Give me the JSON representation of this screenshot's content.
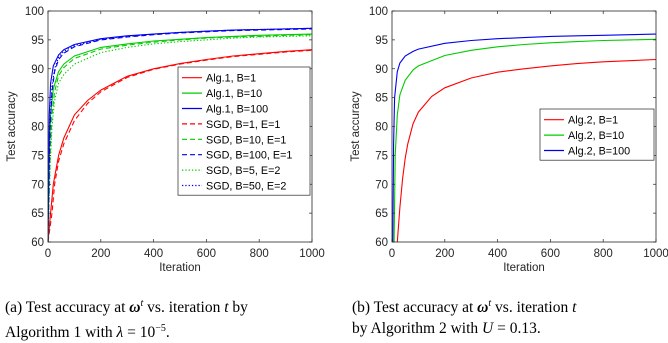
{
  "chart_data": [
    {
      "type": "line",
      "panel": "a",
      "xlabel": "Iteration",
      "ylabel": "Test accuracy",
      "xlim": [
        0,
        1000
      ],
      "ylim": [
        60,
        100
      ],
      "xticks": [
        0,
        200,
        400,
        600,
        800,
        1000
      ],
      "yticks": [
        60,
        65,
        70,
        75,
        80,
        85,
        90,
        95,
        100
      ],
      "legend_position": "right-middle",
      "grid": false,
      "series": [
        {
          "name": "Alg.1, B=1",
          "color": "#ff0000",
          "style": "solid",
          "x": [
            0,
            10,
            20,
            40,
            60,
            100,
            150,
            200,
            300,
            400,
            500,
            600,
            700,
            800,
            900,
            1000
          ],
          "y": [
            60,
            65,
            70,
            75,
            78,
            82,
            84.5,
            86.3,
            88.7,
            90,
            90.9,
            91.6,
            92.2,
            92.6,
            93,
            93.3
          ]
        },
        {
          "name": "Alg.1, B=10",
          "color": "#00cc00",
          "style": "solid",
          "x": [
            0,
            5,
            10,
            20,
            40,
            60,
            100,
            200,
            300,
            400,
            500,
            600,
            700,
            800,
            900,
            1000
          ],
          "y": [
            60,
            75,
            82,
            86.5,
            89.5,
            90.8,
            92.2,
            93.7,
            94.3,
            94.8,
            95.1,
            95.4,
            95.6,
            95.8,
            95.9,
            96
          ]
        },
        {
          "name": "Alg.1, B=100",
          "color": "#0000ee",
          "style": "solid",
          "x": [
            0,
            3,
            5,
            10,
            20,
            40,
            60,
            100,
            200,
            300,
            400,
            500,
            600,
            700,
            800,
            900,
            1000
          ],
          "y": [
            60,
            75,
            82,
            87.5,
            90.5,
            92.4,
            93.3,
            94.2,
            95.2,
            95.7,
            96,
            96.3,
            96.5,
            96.7,
            96.8,
            96.9,
            97
          ]
        },
        {
          "name": "SGD, B=1, E=1",
          "color": "#ff0000",
          "style": "dashed",
          "x": [
            0,
            15,
            25,
            40,
            60,
            100,
            150,
            200,
            300,
            400,
            500,
            600,
            700,
            800,
            900,
            1000
          ],
          "y": [
            60,
            65,
            70,
            74,
            77,
            81,
            84,
            86,
            88.5,
            89.9,
            90.8,
            91.5,
            92.1,
            92.5,
            92.9,
            93.2
          ]
        },
        {
          "name": "SGD, B=10, E=1",
          "color": "#00cc00",
          "style": "dashed",
          "x": [
            0,
            8,
            15,
            25,
            40,
            60,
            100,
            200,
            300,
            400,
            500,
            600,
            700,
            800,
            900,
            1000
          ],
          "y": [
            60,
            75,
            82,
            86,
            88.8,
            90.2,
            91.8,
            93.4,
            94.1,
            94.6,
            95,
            95.3,
            95.5,
            95.6,
            95.8,
            95.9
          ]
        },
        {
          "name": "SGD, B=100, E=1",
          "color": "#0000ee",
          "style": "dashed",
          "x": [
            0,
            4,
            8,
            15,
            25,
            40,
            60,
            100,
            200,
            300,
            400,
            500,
            600,
            700,
            800,
            900,
            1000
          ],
          "y": [
            60,
            72,
            80,
            86,
            89.5,
            91.6,
            92.7,
            93.8,
            95,
            95.5,
            95.9,
            96.2,
            96.4,
            96.6,
            96.7,
            96.8,
            96.9
          ]
        },
        {
          "name": "SGD, B=5, E=2",
          "color": "#00cc00",
          "style": "dotted",
          "x": [
            0,
            8,
            15,
            25,
            40,
            60,
            100,
            200,
            300,
            400,
            500,
            600,
            700,
            800,
            900,
            1000
          ],
          "y": [
            60,
            73,
            80,
            84.5,
            87.5,
            89,
            90.8,
            92.8,
            93.7,
            94.3,
            94.7,
            95,
            95.3,
            95.5,
            95.6,
            95.7
          ]
        },
        {
          "name": "SGD, B=50, E=2",
          "color": "#0000ee",
          "style": "dotted",
          "x": [
            0,
            4,
            8,
            15,
            25,
            40,
            60,
            100,
            200,
            300,
            400,
            500,
            600,
            700,
            800,
            900,
            1000
          ],
          "y": [
            60,
            73,
            81,
            87,
            90,
            92,
            93,
            94,
            95.1,
            95.6,
            96,
            96.3,
            96.5,
            96.7,
            96.8,
            96.9,
            97
          ]
        }
      ]
    },
    {
      "type": "line",
      "panel": "b",
      "xlabel": "Iteration",
      "ylabel": "Test accuracy",
      "xlim": [
        0,
        1000
      ],
      "ylim": [
        60,
        100
      ],
      "xticks": [
        0,
        200,
        400,
        600,
        800,
        1000
      ],
      "yticks": [
        60,
        65,
        70,
        75,
        80,
        85,
        90,
        95,
        100
      ],
      "legend_position": "right-middle",
      "grid": false,
      "series": [
        {
          "name": "Alg.2, B=1",
          "color": "#ff0000",
          "style": "solid",
          "x": [
            20,
            30,
            40,
            50,
            60,
            80,
            100,
            150,
            200,
            300,
            400,
            500,
            600,
            700,
            800,
            900,
            1000
          ],
          "y": [
            60,
            66,
            71,
            74.5,
            77,
            80.5,
            82.5,
            85.2,
            86.7,
            88.4,
            89.4,
            90,
            90.5,
            90.9,
            91.2,
            91.4,
            91.6
          ]
        },
        {
          "name": "Alg.2, B=10",
          "color": "#00cc00",
          "style": "solid",
          "x": [
            8,
            12,
            20,
            30,
            50,
            80,
            100,
            200,
            300,
            400,
            500,
            600,
            700,
            800,
            900,
            1000
          ],
          "y": [
            60,
            75,
            82,
            85.5,
            88,
            89.8,
            90.5,
            92.3,
            93.2,
            93.8,
            94.2,
            94.5,
            94.7,
            94.9,
            95,
            95.1
          ]
        },
        {
          "name": "Alg.2, B=100",
          "color": "#0000ee",
          "style": "solid",
          "x": [
            3,
            6,
            10,
            20,
            30,
            50,
            80,
            100,
            200,
            300,
            400,
            500,
            600,
            700,
            800,
            900,
            1000
          ],
          "y": [
            60,
            77,
            85,
            89.5,
            91,
            92.2,
            93,
            93.4,
            94.4,
            94.9,
            95.2,
            95.4,
            95.6,
            95.7,
            95.8,
            95.9,
            96
          ]
        }
      ]
    }
  ],
  "captions": {
    "a": {
      "line1_pre": "(a)  Test accuracy at ",
      "symbol": "ω",
      "superscript": "t",
      "line1_post": " vs. iteration ",
      "iter_var": "t",
      "line1_end": " by",
      "line2_pre": "Algorithm 1 with ",
      "param_var": "λ",
      "param_eq": " = 10",
      "param_exp": "−5",
      "line2_end": "."
    },
    "b": {
      "line1_pre": "(b)    Test accuracy at ",
      "symbol": "ω",
      "superscript": "t",
      "line1_post": " vs. iteration ",
      "iter_var": "t",
      "line2_pre": "by Algorithm 2 with ",
      "param_var": "U",
      "param_eq": " = 0.13",
      "line2_end": "."
    }
  }
}
